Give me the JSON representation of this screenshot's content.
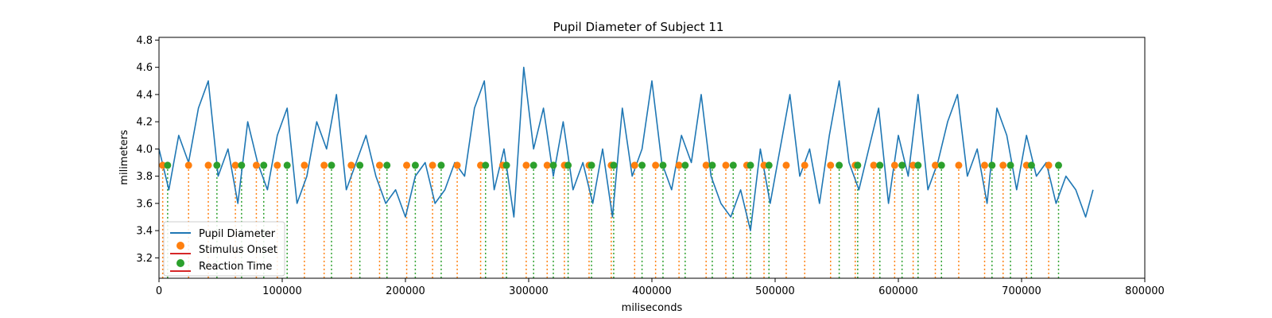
{
  "chart_data": {
    "type": "line",
    "title": "Pupil Diameter of Subject 11",
    "xlabel": "miliseconds",
    "ylabel": "milimeters",
    "xlim": [
      0,
      800000
    ],
    "ylim": [
      3.05,
      4.82
    ],
    "x_ticks": [
      0,
      100000,
      200000,
      300000,
      400000,
      500000,
      600000,
      700000,
      800000
    ],
    "x_tick_labels": [
      "0",
      "100000",
      "200000",
      "300000",
      "400000",
      "500000",
      "600000",
      "700000",
      "800000"
    ],
    "y_ticks": [
      3.2,
      3.4,
      3.6,
      3.8,
      4.0,
      4.2,
      4.4,
      4.6,
      4.8
    ],
    "y_tick_labels": [
      "3.2",
      "3.4",
      "3.6",
      "3.8",
      "4.0",
      "4.2",
      "4.4",
      "4.6",
      "4.8"
    ],
    "grid": false,
    "legend_position": "lower-left",
    "series": [
      {
        "name": "Pupil Diameter",
        "color": "#1f77b4",
        "x": [
          0,
          8000,
          16000,
          24000,
          32000,
          40000,
          48000,
          56000,
          64000,
          72000,
          80000,
          88000,
          96000,
          104000,
          112000,
          120000,
          128000,
          136000,
          144000,
          152000,
          160000,
          168000,
          176000,
          184000,
          192000,
          200000,
          208000,
          216000,
          224000,
          232000,
          240000,
          248000,
          256000,
          264000,
          272000,
          280000,
          288000,
          296000,
          304000,
          312000,
          320000,
          328000,
          336000,
          344000,
          352000,
          360000,
          368000,
          376000,
          384000,
          392000,
          400000,
          408000,
          416000,
          424000,
          432000,
          440000,
          448000,
          456000,
          464000,
          472000,
          480000,
          488000,
          496000,
          504000,
          512000,
          520000,
          528000,
          536000,
          544000,
          552000,
          560000,
          568000,
          576000,
          584000,
          592000,
          600000,
          608000,
          616000,
          624000,
          632000,
          640000,
          648000,
          656000,
          664000,
          672000,
          680000,
          688000,
          696000,
          704000,
          712000,
          720000,
          728000,
          736000,
          744000,
          752000,
          758000
        ],
        "y": [
          4.0,
          3.7,
          4.1,
          3.9,
          4.3,
          4.5,
          3.8,
          4.0,
          3.6,
          4.2,
          3.9,
          3.7,
          4.1,
          4.3,
          3.6,
          3.8,
          4.2,
          4.0,
          4.4,
          3.7,
          3.9,
          4.1,
          3.8,
          3.6,
          3.7,
          3.5,
          3.8,
          3.9,
          3.6,
          3.7,
          3.9,
          3.8,
          4.3,
          4.5,
          3.7,
          4.0,
          3.5,
          4.6,
          4.0,
          4.3,
          3.8,
          4.2,
          3.7,
          3.9,
          3.6,
          4.0,
          3.5,
          4.3,
          3.8,
          4.0,
          4.5,
          3.9,
          3.7,
          4.1,
          3.9,
          4.4,
          3.8,
          3.6,
          3.5,
          3.7,
          3.4,
          4.0,
          3.6,
          4.0,
          4.4,
          3.8,
          4.0,
          3.6,
          4.1,
          4.5,
          3.9,
          3.7,
          4.0,
          4.3,
          3.6,
          4.1,
          3.8,
          4.4,
          3.7,
          3.9,
          4.2,
          4.4,
          3.8,
          4.0,
          3.6,
          4.3,
          4.1,
          3.7,
          4.1,
          3.8,
          3.9,
          3.6,
          3.8,
          3.7,
          3.5,
          3.7
        ]
      },
      {
        "name": "Stimulus Onset",
        "color": "#ff7f0e",
        "marker_y": 3.88,
        "x": [
          3000,
          24000,
          40000,
          62000,
          79000,
          96000,
          118000,
          134000,
          156000,
          179000,
          201000,
          222000,
          242000,
          261000,
          279000,
          298000,
          315000,
          329000,
          349000,
          367000,
          386000,
          403000,
          422000,
          444000,
          460000,
          477000,
          491000,
          509000,
          524000,
          545000,
          565000,
          580000,
          597000,
          612000,
          630000,
          649000,
          670000,
          685000,
          704000,
          722000
        ]
      },
      {
        "name": "Reaction Time",
        "color": "#2ca02c",
        "marker_y": 3.88,
        "x": [
          7000,
          47000,
          67000,
          85000,
          104000,
          140000,
          163000,
          185000,
          208000,
          229000,
          265000,
          282000,
          304000,
          320000,
          332000,
          351000,
          369000,
          392000,
          409000,
          427000,
          449000,
          466000,
          480000,
          495000,
          552000,
          567000,
          585000,
          603000,
          616000,
          635000,
          676000,
          691000,
          708000,
          730000
        ]
      }
    ],
    "legend": [
      "Pupil Diameter",
      "Stimulus Onset",
      "Reaction Time"
    ]
  }
}
